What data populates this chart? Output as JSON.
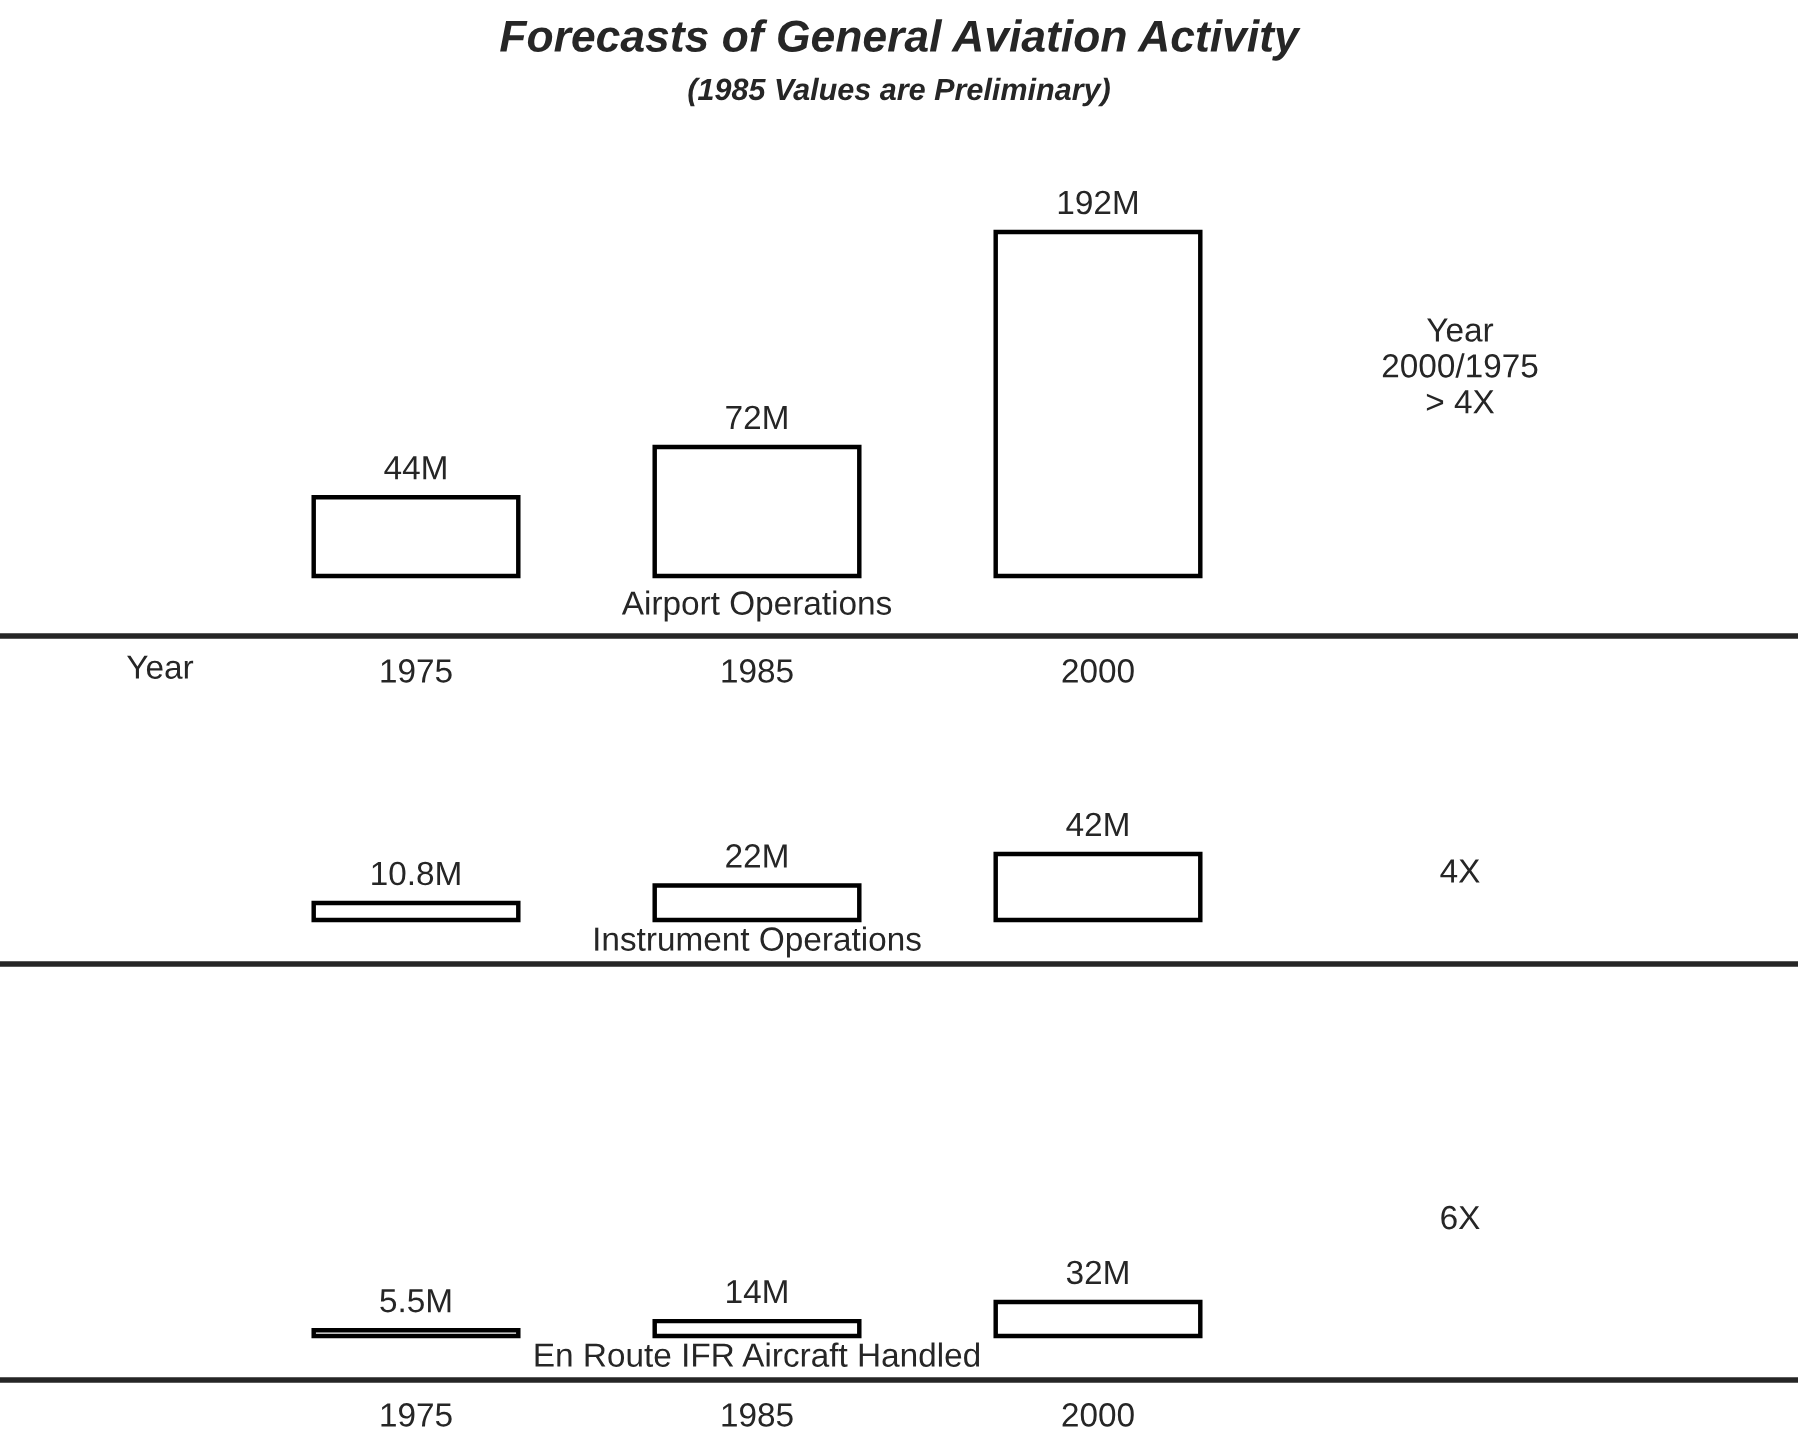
{
  "chart_data": [
    {
      "type": "bar",
      "title": "Forecasts of General Aviation Activity",
      "subtitle": "(1985 Values are Preliminary)",
      "xlabel": "Year",
      "categories": [
        "1975",
        "1985",
        "2000"
      ],
      "series": [
        {
          "color": "#ffffff",
          "values": [
            44,
            72,
            192
          ],
          "value_labels": [
            "44M",
            "72M",
            "192M"
          ]
        }
      ],
      "tick_labels": "x",
      "grid": false,
      "annotations": [
        "Airport Operations",
        "Year\n2000/1975\n> 4X"
      ]
    },
    {
      "type": "bar",
      "categories": [
        "1975",
        "1985",
        "2000"
      ],
      "series": [
        {
          "color": "#ffffff",
          "values": [
            10.8,
            22,
            42
          ],
          "value_labels": [
            "10.8M",
            "22M",
            "42M"
          ]
        }
      ],
      "tick_labels": false,
      "grid": false,
      "annotations": [
        "Instrument Operations",
        "4X"
      ]
    },
    {
      "type": "bar",
      "categories": [
        "1975",
        "1985",
        "2000"
      ],
      "series": [
        {
          "color": "#ffffff",
          "values": [
            5.5,
            14,
            32
          ],
          "value_labels": [
            "5.5M",
            "14M",
            "32M"
          ]
        }
      ],
      "tick_labels": "x",
      "grid": false,
      "annotations": [
        "En Route IFR Aircraft Handled",
        "6X"
      ]
    }
  ]
}
